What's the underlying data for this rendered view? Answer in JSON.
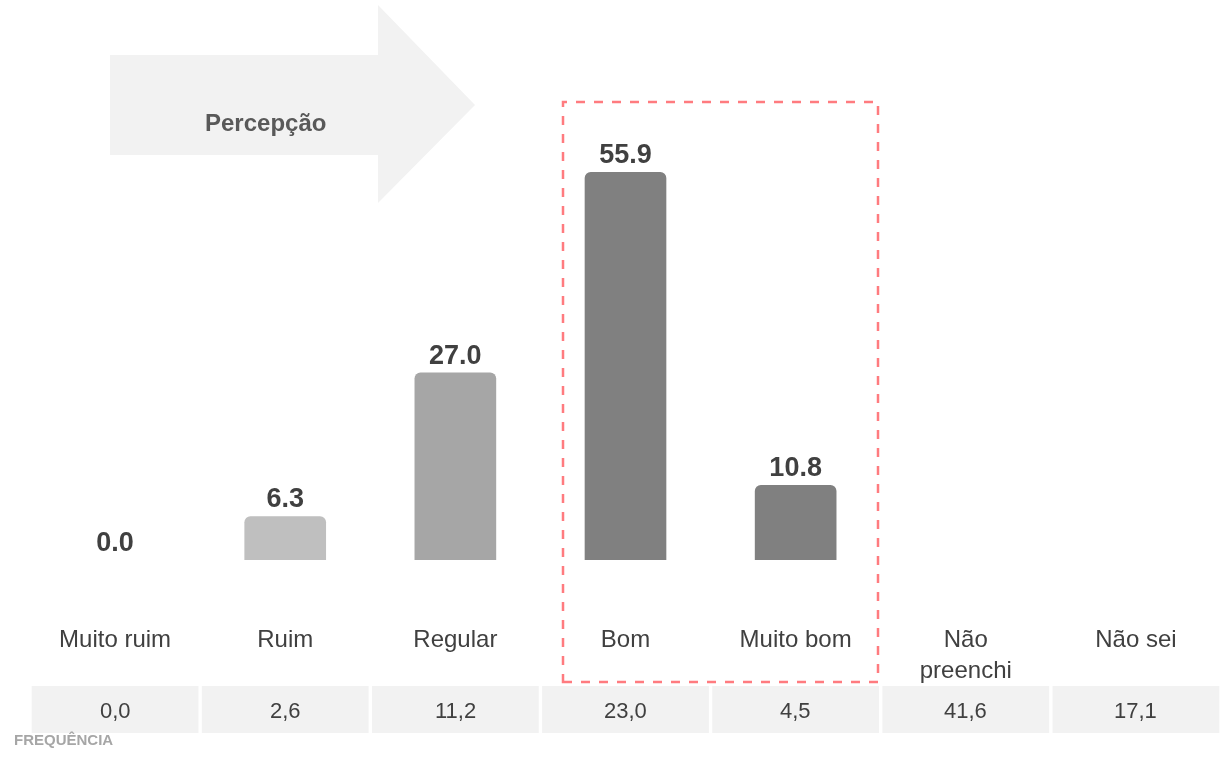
{
  "chart_data": {
    "type": "bar",
    "categories": [
      "Muito ruim",
      "Ruim",
      "Regular",
      "Bom",
      "Muito bom",
      "Não preenchi",
      "Não sei"
    ],
    "values": [
      0.0,
      6.3,
      27.0,
      55.9,
      10.8,
      null,
      null
    ],
    "value_labels": [
      "0.0",
      "6.3",
      "27.0",
      "55.9",
      "10.8",
      null,
      null
    ],
    "colors": [
      "#bfbfbf",
      "#bfbfbf",
      "#a6a6a6",
      "#808080",
      "#808080",
      "#808080",
      "#808080"
    ],
    "annotations": [
      "Percepção",
      "FREQUÊNCIA",
      "0,0",
      "2,6",
      "11,2",
      "23,0",
      "4,5",
      "41,6",
      "17,1"
    ],
    "grid": false,
    "legend": false
  }
}
